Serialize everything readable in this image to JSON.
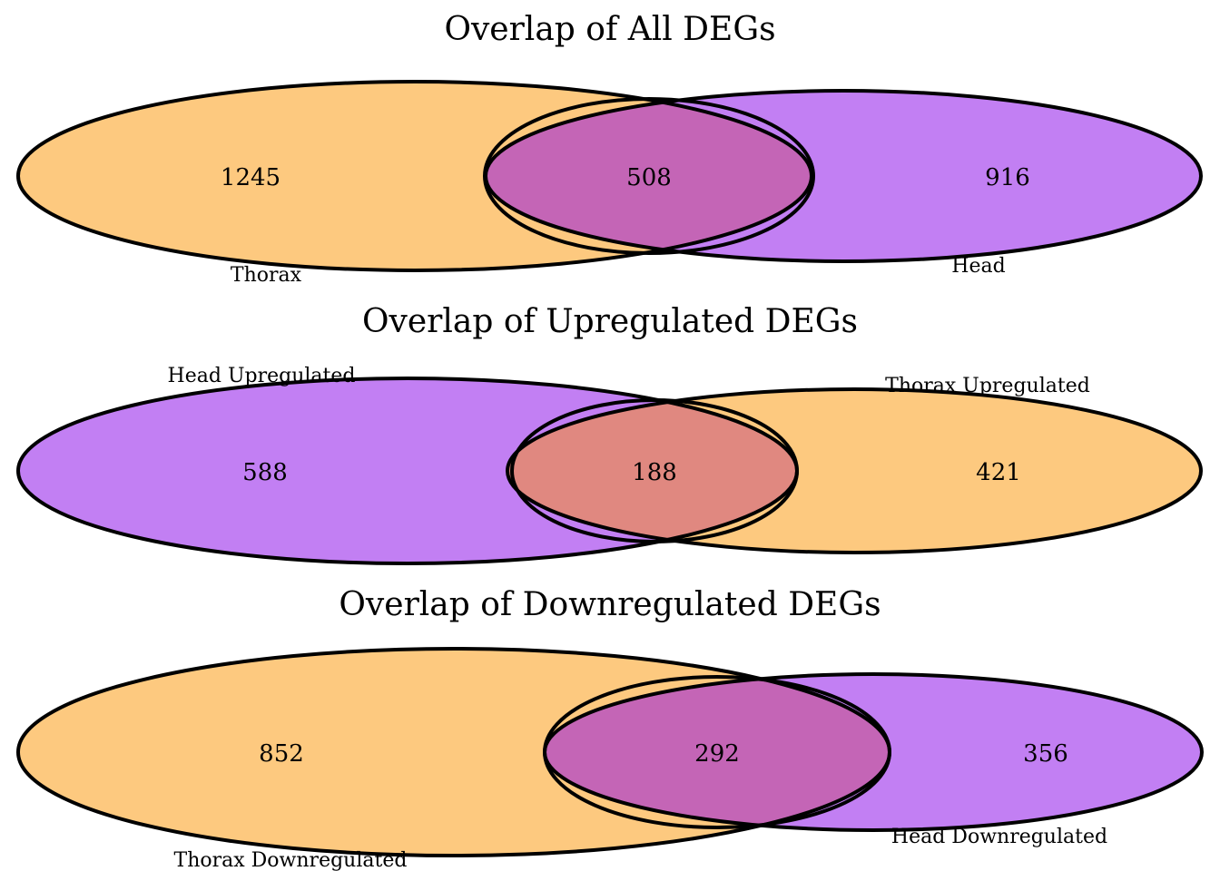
{
  "chart_data": [
    {
      "type": "venn",
      "title": "Overlap of All DEGs",
      "sets": [
        {
          "name": "Thorax",
          "color": "#fdc97f",
          "only": 1245
        },
        {
          "name": "Head",
          "color": "#c27ff3",
          "only": 916
        }
      ],
      "intersection": 508,
      "intersection_color": "#c465b6"
    },
    {
      "type": "venn",
      "title": "Overlap of Upregulated DEGs",
      "sets": [
        {
          "name": "Head Upregulated",
          "color": "#c27ff3",
          "only": 588
        },
        {
          "name": "Thorax Upregulated",
          "color": "#fdc97f",
          "only": 421
        }
      ],
      "intersection": 188,
      "intersection_color": "#e08880"
    },
    {
      "type": "venn",
      "title": "Overlap of Downregulated DEGs",
      "sets": [
        {
          "name": "Thorax Downregulated",
          "color": "#fdc97f",
          "only": 852
        },
        {
          "name": "Head Downregulated",
          "color": "#c27ff3",
          "only": 356
        }
      ],
      "intersection": 292,
      "intersection_color": "#c465b6"
    }
  ]
}
